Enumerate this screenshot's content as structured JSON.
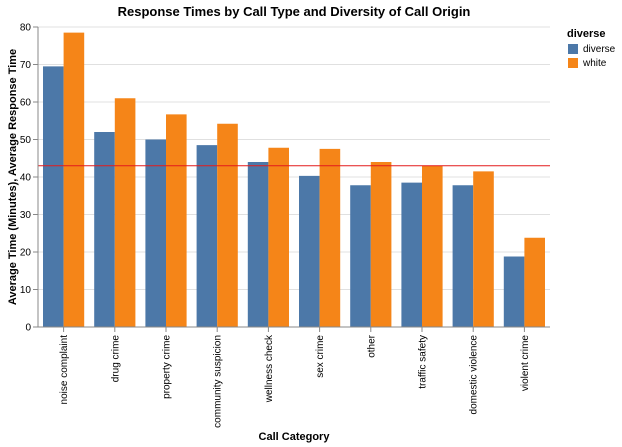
{
  "chart_data": {
    "type": "bar",
    "title": "Response Times by Call Type and Diversity of Call Origin",
    "xlabel": "Call Category",
    "ylabel": "Average Time (Minutes), Average Response Time",
    "ylim": [
      0,
      80
    ],
    "yticks": [
      0,
      10,
      20,
      30,
      40,
      50,
      60,
      70,
      80
    ],
    "categories": [
      "noise complaint",
      "drug crime",
      "property crime",
      "community suspicion",
      "wellness check",
      "sex crime",
      "other",
      "traffic safety",
      "domestic violence",
      "violent crime"
    ],
    "series": [
      {
        "name": "diverse",
        "color": "#4c78a8",
        "values": [
          69.5,
          52,
          50,
          48.5,
          44,
          40.3,
          37.8,
          38.5,
          37.8,
          18.8
        ]
      },
      {
        "name": "white",
        "color": "#f58518",
        "values": [
          78.5,
          61,
          56.7,
          54.2,
          47.8,
          47.5,
          44,
          43,
          41.5,
          23.8
        ]
      }
    ],
    "reference_line": {
      "value": 43,
      "color": "#e41a1c"
    },
    "legend": {
      "title": "diverse",
      "position": "top-right"
    },
    "grid": true
  }
}
